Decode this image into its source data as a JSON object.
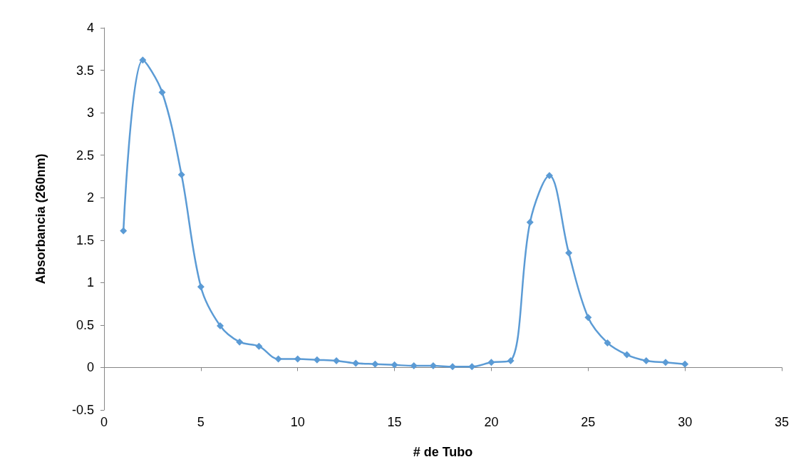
{
  "chart_data": {
    "type": "line",
    "xlabel": "# de Tubo",
    "ylabel": "Absorbancia (260nm)",
    "x": [
      1,
      2,
      3,
      4,
      5,
      6,
      7,
      8,
      9,
      10,
      11,
      12,
      13,
      14,
      15,
      16,
      17,
      18,
      19,
      20,
      21,
      22,
      23,
      24,
      25,
      26,
      27,
      28,
      29,
      30
    ],
    "series": [
      {
        "color": "#5b9bd5",
        "values": [
          1.61,
          3.62,
          3.24,
          2.27,
          0.95,
          0.49,
          0.3,
          0.25,
          0.1,
          0.1,
          0.09,
          0.08,
          0.05,
          0.04,
          0.03,
          0.02,
          0.02,
          0.01,
          0.01,
          0.06,
          0.08,
          1.71,
          2.26,
          1.35,
          0.59,
          0.29,
          0.15,
          0.08,
          0.06,
          0.04
        ]
      }
    ],
    "xlim": [
      0,
      35
    ],
    "xticks": [
      0,
      5,
      10,
      15,
      20,
      25,
      30,
      35
    ],
    "ylim": [
      -0.5,
      4
    ],
    "yticks": [
      -0.5,
      0,
      0.5,
      1,
      1.5,
      2,
      2.5,
      3,
      3.5,
      4
    ],
    "marker": "diamond",
    "line_style": "solid"
  }
}
